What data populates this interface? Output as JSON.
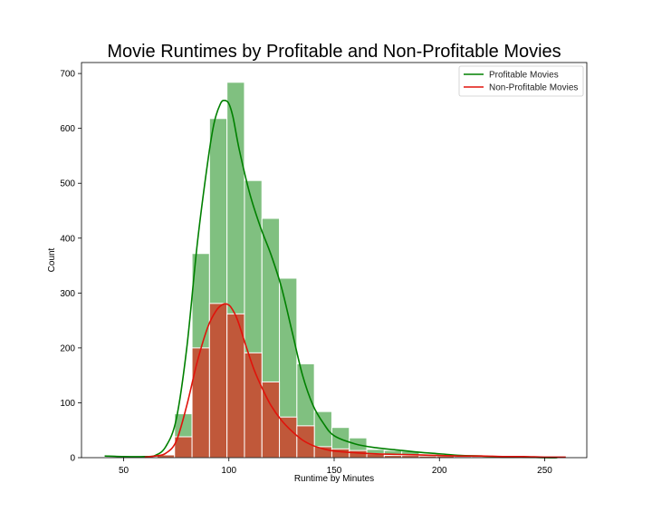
{
  "chart_data": {
    "type": "bar",
    "subtype": "histogram-with-kde",
    "title": "Movie Runtimes by Profitable and Non-Profitable Movies",
    "xlabel": "Runtime by Minutes",
    "ylabel": "Count",
    "xlim": [
      30,
      270
    ],
    "ylim": [
      0,
      720
    ],
    "xticks": [
      50,
      100,
      150,
      200,
      250
    ],
    "yticks": [
      0,
      100,
      200,
      300,
      400,
      500,
      600,
      700
    ],
    "grid": false,
    "legend_position": "top-right",
    "series": [
      {
        "name": "Profitable Movies",
        "bar_color": "#80c080",
        "line_color": "#008000",
        "bins": [
          {
            "x0": 41,
            "x1": 49.3,
            "count": 1
          },
          {
            "x0": 49.3,
            "x1": 57.6,
            "count": 0
          },
          {
            "x0": 57.6,
            "x1": 65.9,
            "count": 1
          },
          {
            "x0": 65.9,
            "x1": 74.2,
            "count": 4
          },
          {
            "x0": 74.2,
            "x1": 82.5,
            "count": 80
          },
          {
            "x0": 82.5,
            "x1": 90.8,
            "count": 372
          },
          {
            "x0": 90.8,
            "x1": 99.1,
            "count": 618
          },
          {
            "x0": 99.1,
            "x1": 107.4,
            "count": 684
          },
          {
            "x0": 107.4,
            "x1": 115.7,
            "count": 505
          },
          {
            "x0": 115.7,
            "x1": 124,
            "count": 436
          },
          {
            "x0": 124,
            "x1": 132.3,
            "count": 327
          },
          {
            "x0": 132.3,
            "x1": 140.6,
            "count": 171
          },
          {
            "x0": 140.6,
            "x1": 148.9,
            "count": 84
          },
          {
            "x0": 148.9,
            "x1": 157.2,
            "count": 55
          },
          {
            "x0": 157.2,
            "x1": 165.5,
            "count": 36
          },
          {
            "x0": 165.5,
            "x1": 173.8,
            "count": 15
          },
          {
            "x0": 173.8,
            "x1": 182.1,
            "count": 13
          },
          {
            "x0": 182.1,
            "x1": 190.4,
            "count": 12
          },
          {
            "x0": 190.4,
            "x1": 198.7,
            "count": 6
          },
          {
            "x0": 198.7,
            "x1": 207,
            "count": 5
          },
          {
            "x0": 207,
            "x1": 215.3,
            "count": 2
          },
          {
            "x0": 215.3,
            "x1": 223.6,
            "count": 1
          },
          {
            "x0": 223.6,
            "x1": 231.9,
            "count": 1
          },
          {
            "x0": 231.9,
            "x1": 240.2,
            "count": 0
          },
          {
            "x0": 240.2,
            "x1": 248.5,
            "count": 0
          },
          {
            "x0": 248.5,
            "x1": 256.8,
            "count": 0
          }
        ],
        "kde": {
          "x": [
            41,
            50,
            60,
            65,
            70,
            75,
            80,
            85,
            90,
            93,
            96,
            98,
            100,
            102,
            105,
            110,
            115,
            120,
            125,
            130,
            135,
            140,
            145,
            150,
            160,
            170,
            180,
            190,
            200,
            210,
            220,
            230,
            240,
            250,
            256
          ],
          "y": [
            3,
            2,
            2,
            4,
            20,
            70,
            200,
            390,
            540,
            610,
            645,
            651,
            645,
            620,
            560,
            480,
            420,
            370,
            310,
            230,
            150,
            95,
            62,
            40,
            25,
            18,
            14,
            10,
            7,
            4,
            3,
            1,
            1,
            0,
            0
          ]
        }
      },
      {
        "name": "Non-Profitable Movies",
        "bar_color": "#c0583a",
        "line_color": "#e0130b",
        "bins": [
          {
            "x0": 41,
            "x1": 49.3,
            "count": 0
          },
          {
            "x0": 49.3,
            "x1": 57.6,
            "count": 0
          },
          {
            "x0": 57.6,
            "x1": 65.9,
            "count": 1
          },
          {
            "x0": 65.9,
            "x1": 74.2,
            "count": 5
          },
          {
            "x0": 74.2,
            "x1": 82.5,
            "count": 38
          },
          {
            "x0": 82.5,
            "x1": 90.8,
            "count": 200
          },
          {
            "x0": 90.8,
            "x1": 99.1,
            "count": 281
          },
          {
            "x0": 99.1,
            "x1": 107.4,
            "count": 262
          },
          {
            "x0": 107.4,
            "x1": 115.7,
            "count": 191
          },
          {
            "x0": 115.7,
            "x1": 124,
            "count": 138
          },
          {
            "x0": 124,
            "x1": 132.3,
            "count": 74
          },
          {
            "x0": 132.3,
            "x1": 140.6,
            "count": 58
          },
          {
            "x0": 140.6,
            "x1": 148.9,
            "count": 20
          },
          {
            "x0": 148.9,
            "x1": 157.2,
            "count": 16
          },
          {
            "x0": 157.2,
            "x1": 165.5,
            "count": 13
          },
          {
            "x0": 165.5,
            "x1": 173.8,
            "count": 7
          },
          {
            "x0": 173.8,
            "x1": 182.1,
            "count": 4
          },
          {
            "x0": 182.1,
            "x1": 190.4,
            "count": 4
          },
          {
            "x0": 190.4,
            "x1": 198.7,
            "count": 3
          },
          {
            "x0": 198.7,
            "x1": 207,
            "count": 3
          },
          {
            "x0": 207,
            "x1": 215.3,
            "count": 2
          },
          {
            "x0": 215.3,
            "x1": 223.6,
            "count": 2
          },
          {
            "x0": 223.6,
            "x1": 231.9,
            "count": 1
          },
          {
            "x0": 231.9,
            "x1": 240.2,
            "count": 0
          },
          {
            "x0": 240.2,
            "x1": 248.5,
            "count": 0
          },
          {
            "x0": 248.5,
            "x1": 256.8,
            "count": 1
          }
        ],
        "kde": {
          "x": [
            60,
            65,
            70,
            75,
            80,
            85,
            90,
            94,
            97,
            99,
            101,
            104,
            108,
            112,
            116,
            120,
            125,
            130,
            135,
            140,
            145,
            150,
            160,
            170,
            180,
            190,
            200,
            210,
            220,
            230,
            240,
            250,
            260
          ],
          "y": [
            1,
            3,
            8,
            30,
            95,
            175,
            238,
            268,
            279,
            280,
            274,
            252,
            205,
            160,
            125,
            95,
            68,
            48,
            32,
            22,
            16,
            12,
            9,
            7,
            6,
            5,
            4,
            3,
            3,
            2,
            2,
            1,
            1
          ]
        }
      }
    ]
  }
}
